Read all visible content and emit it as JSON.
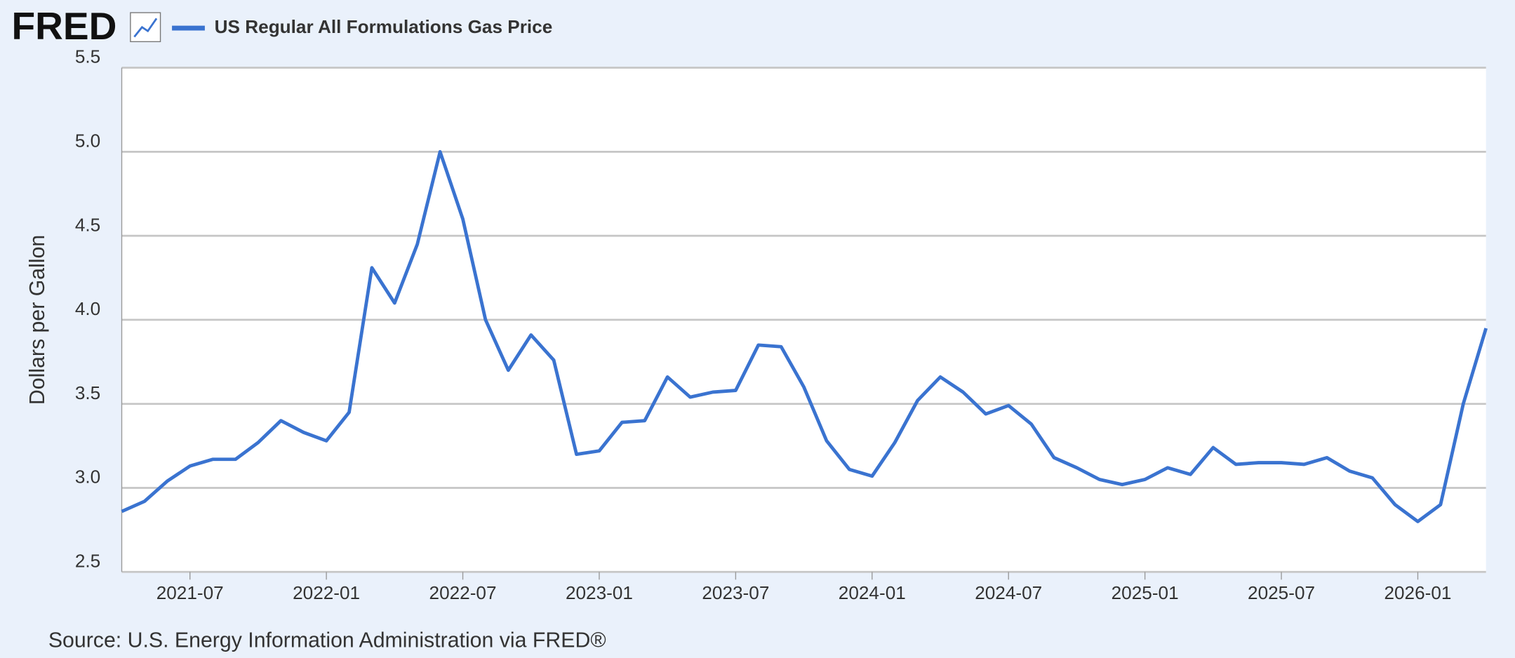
{
  "logo": "FRED",
  "chart_data": {
    "type": "line",
    "x": [
      "2021-04",
      "2021-05",
      "2021-06",
      "2021-07",
      "2021-08",
      "2021-09",
      "2021-10",
      "2021-11",
      "2021-12",
      "2022-01",
      "2022-02",
      "2022-03",
      "2022-04",
      "2022-05",
      "2022-06",
      "2022-07",
      "2022-08",
      "2022-09",
      "2022-10",
      "2022-11",
      "2022-12",
      "2023-01",
      "2023-02",
      "2023-03",
      "2023-04",
      "2023-05",
      "2023-06",
      "2023-07",
      "2023-08",
      "2023-09",
      "2023-10",
      "2023-11",
      "2023-12",
      "2024-01",
      "2024-02",
      "2024-03",
      "2024-04",
      "2024-05",
      "2024-06",
      "2024-07",
      "2024-08",
      "2024-09",
      "2024-10",
      "2024-11",
      "2024-12",
      "2025-01",
      "2025-02",
      "2025-03",
      "2025-04",
      "2025-05",
      "2025-06",
      "2025-07",
      "2025-08",
      "2025-09",
      "2025-10",
      "2025-11",
      "2025-12",
      "2026-01",
      "2026-02",
      "2026-03",
      "2026-04"
    ],
    "series": [
      {
        "name": "US Regular All Formulations Gas Price",
        "color": "#3a73d0",
        "values": [
          2.86,
          2.92,
          3.04,
          3.13,
          3.17,
          3.17,
          3.27,
          3.4,
          3.33,
          3.28,
          3.45,
          4.31,
          4.1,
          4.45,
          5.0,
          4.6,
          4.0,
          3.7,
          3.91,
          3.76,
          3.2,
          3.22,
          3.39,
          3.4,
          3.66,
          3.54,
          3.57,
          3.58,
          3.85,
          3.84,
          3.6,
          3.28,
          3.11,
          3.07,
          3.27,
          3.52,
          3.66,
          3.57,
          3.44,
          3.49,
          3.38,
          3.18,
          3.12,
          3.05,
          3.02,
          3.05,
          3.12,
          3.08,
          3.24,
          3.14,
          3.15,
          3.15,
          3.14,
          3.18,
          3.1,
          3.06,
          2.9,
          2.8,
          2.9,
          3.5,
          3.95
        ]
      }
    ],
    "xlim": [
      "2021-04",
      "2026-04"
    ],
    "xticks": [
      "2021-07",
      "2022-01",
      "2022-07",
      "2023-01",
      "2023-07",
      "2024-01",
      "2024-07",
      "2025-01",
      "2025-07",
      "2026-01"
    ],
    "ylim": [
      2.5,
      5.5
    ],
    "yticks": [
      2.5,
      {
        "value": 3,
        "label": "3.0"
      },
      3.5,
      {
        "value": 4,
        "label": "4.0"
      },
      4.5,
      {
        "value": 5,
        "label": "5.0"
      },
      5.5
    ],
    "ylabel": "Dollars per Gallon",
    "source": "Source: U.S. Energy Information Administration via FRED®",
    "grid": true
  }
}
